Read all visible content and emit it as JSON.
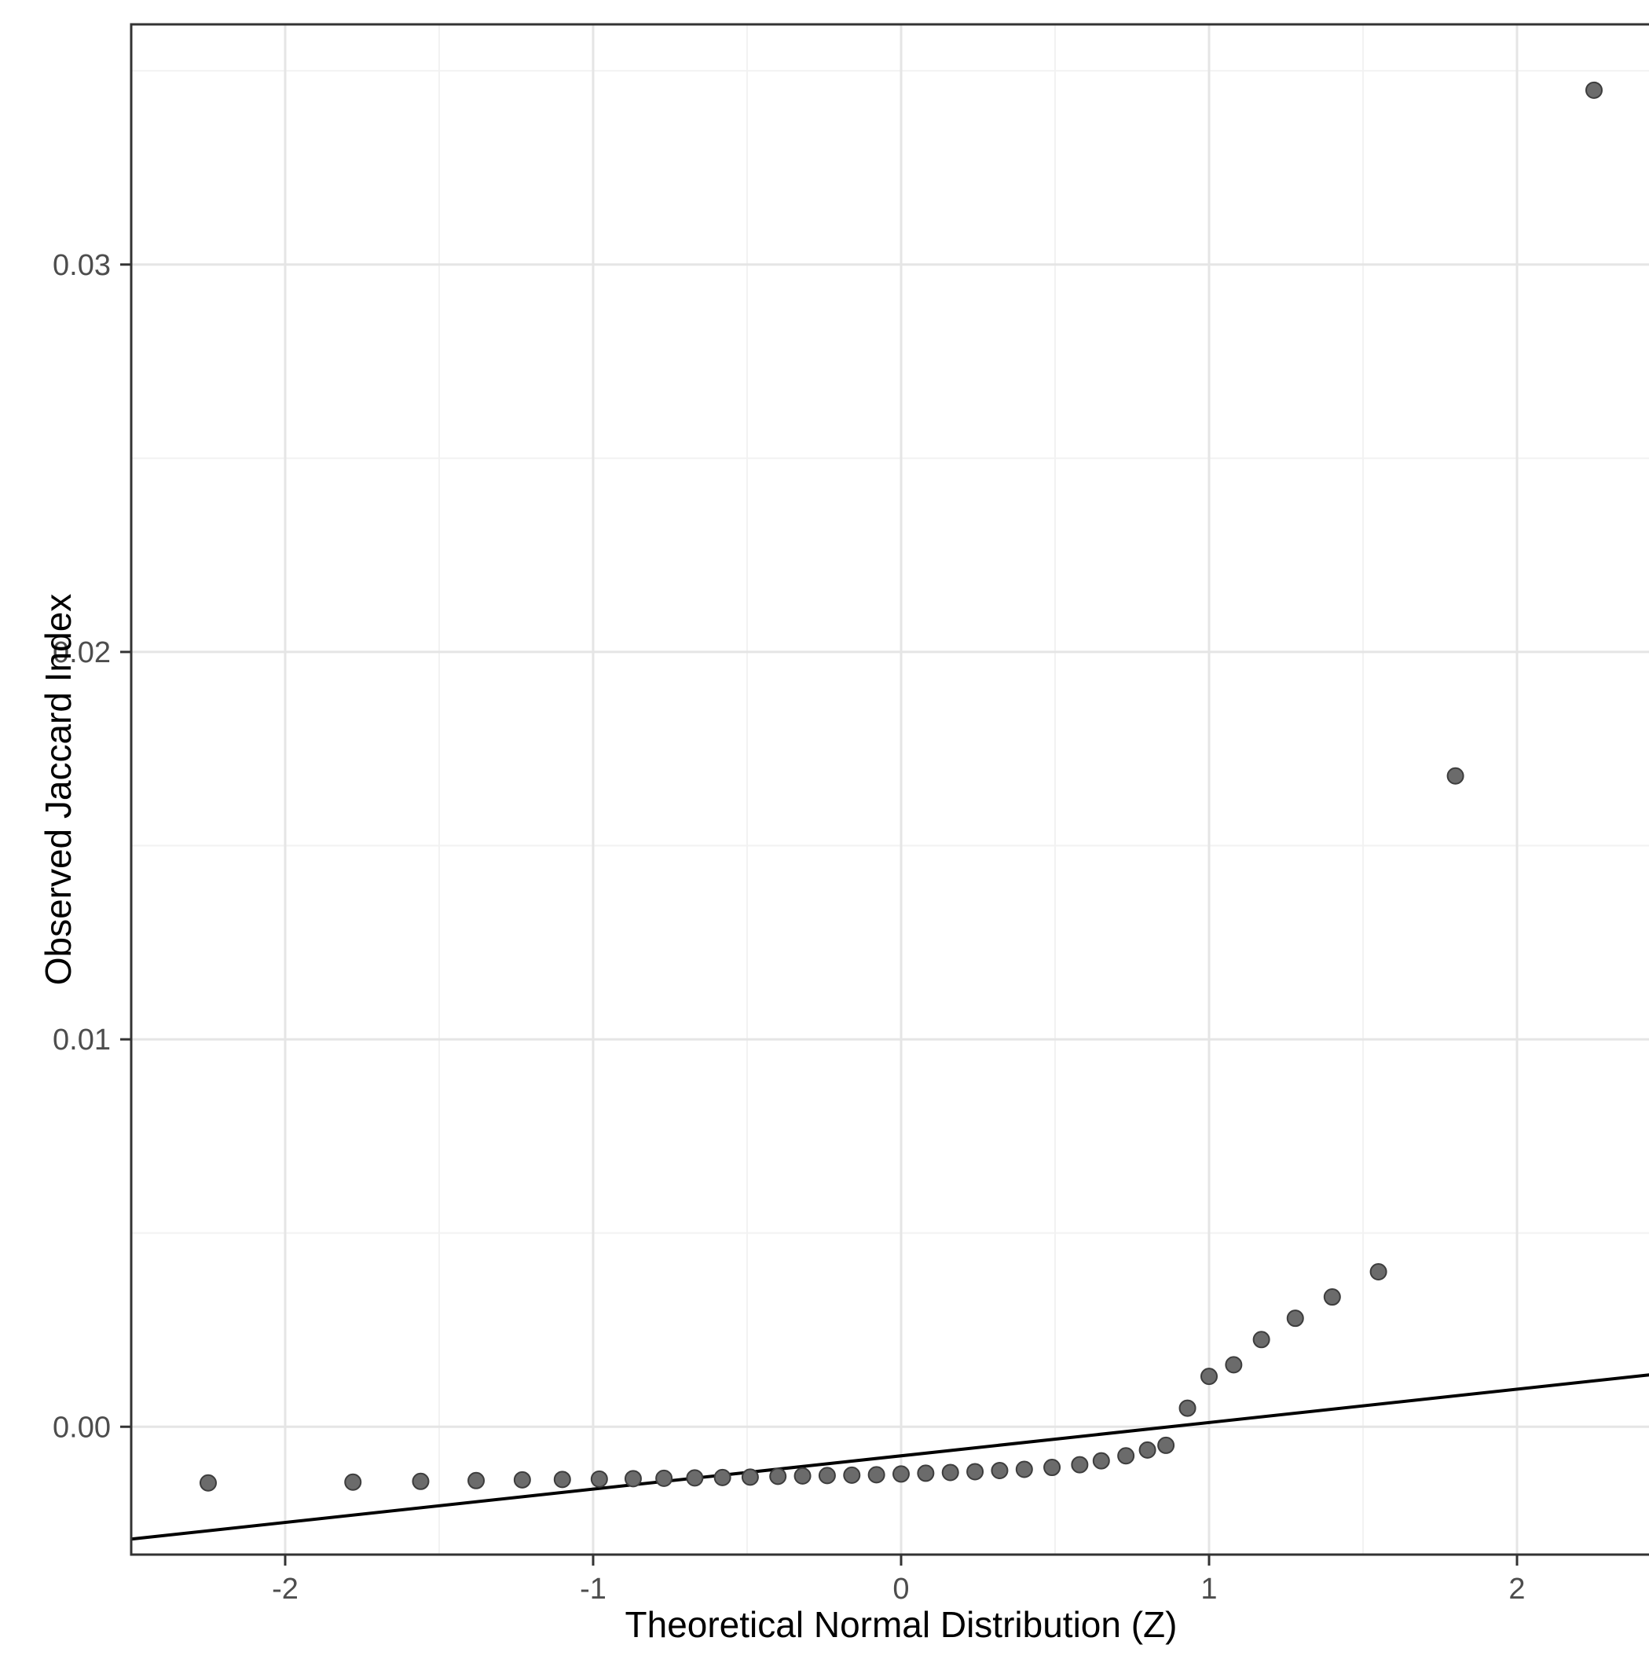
{
  "chart_data": {
    "type": "scatter",
    "subtype": "qq-plot",
    "xlabel": "Theoretical Normal Distribution (Z)",
    "ylabel": "Observed Jaccard Index",
    "xlim": [
      -2.5,
      2.5
    ],
    "ylim": [
      -0.0033,
      0.0362
    ],
    "grid": true,
    "legend_position": "none",
    "x_ticks": [
      {
        "value": -2,
        "label": "-2"
      },
      {
        "value": -1,
        "label": "-1"
      },
      {
        "value": 0,
        "label": "0"
      },
      {
        "value": 1,
        "label": "1"
      },
      {
        "value": 2,
        "label": "2"
      }
    ],
    "y_ticks": [
      {
        "value": 0.0,
        "label": "0.00"
      },
      {
        "value": 0.01,
        "label": "0.01"
      },
      {
        "value": 0.02,
        "label": "0.02"
      },
      {
        "value": 0.03,
        "label": "0.03"
      }
    ],
    "x_minor": [
      -1.5,
      -0.5,
      0.5,
      1.5
    ],
    "y_minor": [
      0.005,
      0.015,
      0.025,
      0.035
    ],
    "points": [
      [
        -2.25,
        -0.00145
      ],
      [
        -1.78,
        -0.00143
      ],
      [
        -1.56,
        -0.00141
      ],
      [
        -1.38,
        -0.00139
      ],
      [
        -1.23,
        -0.00137
      ],
      [
        -1.1,
        -0.00136
      ],
      [
        -0.98,
        -0.00135
      ],
      [
        -0.87,
        -0.00134
      ],
      [
        -0.77,
        -0.00133
      ],
      [
        -0.67,
        -0.00132
      ],
      [
        -0.58,
        -0.00131
      ],
      [
        -0.49,
        -0.0013
      ],
      [
        -0.4,
        -0.00128
      ],
      [
        -0.32,
        -0.00127
      ],
      [
        -0.24,
        -0.00126
      ],
      [
        -0.16,
        -0.00125
      ],
      [
        -0.08,
        -0.00124
      ],
      [
        0.0,
        -0.00122
      ],
      [
        0.08,
        -0.0012
      ],
      [
        0.16,
        -0.00118
      ],
      [
        0.24,
        -0.00116
      ],
      [
        0.32,
        -0.00113
      ],
      [
        0.4,
        -0.0011
      ],
      [
        0.49,
        -0.00105
      ],
      [
        0.58,
        -0.00098
      ],
      [
        0.65,
        -0.00088
      ],
      [
        0.73,
        -0.00075
      ],
      [
        0.8,
        -0.0006
      ],
      [
        0.86,
        -0.00048
      ],
      [
        0.93,
        0.00048
      ],
      [
        1.0,
        0.0013
      ],
      [
        1.08,
        0.0016
      ],
      [
        1.17,
        0.00225
      ],
      [
        1.28,
        0.0028
      ],
      [
        1.4,
        0.00335
      ],
      [
        1.55,
        0.004
      ],
      [
        1.8,
        0.0168
      ],
      [
        2.25,
        0.0345
      ]
    ],
    "ref_line": {
      "x1": -2.5,
      "y1": -0.0029,
      "x2": 2.5,
      "y2": 0.0014
    },
    "style": {
      "panel_background": "#FFFFFF",
      "panel_border": "#333333",
      "grid_major": "#E5E5E5",
      "grid_minor": "#F2F2F2",
      "point_fill": "#6B6B6B",
      "point_stroke": "#3D3D3D",
      "ref_line_color": "#000000",
      "tick_color": "#333333",
      "tick_label_color": "#4D4D4D",
      "axis_title_color": "#000000"
    }
  }
}
